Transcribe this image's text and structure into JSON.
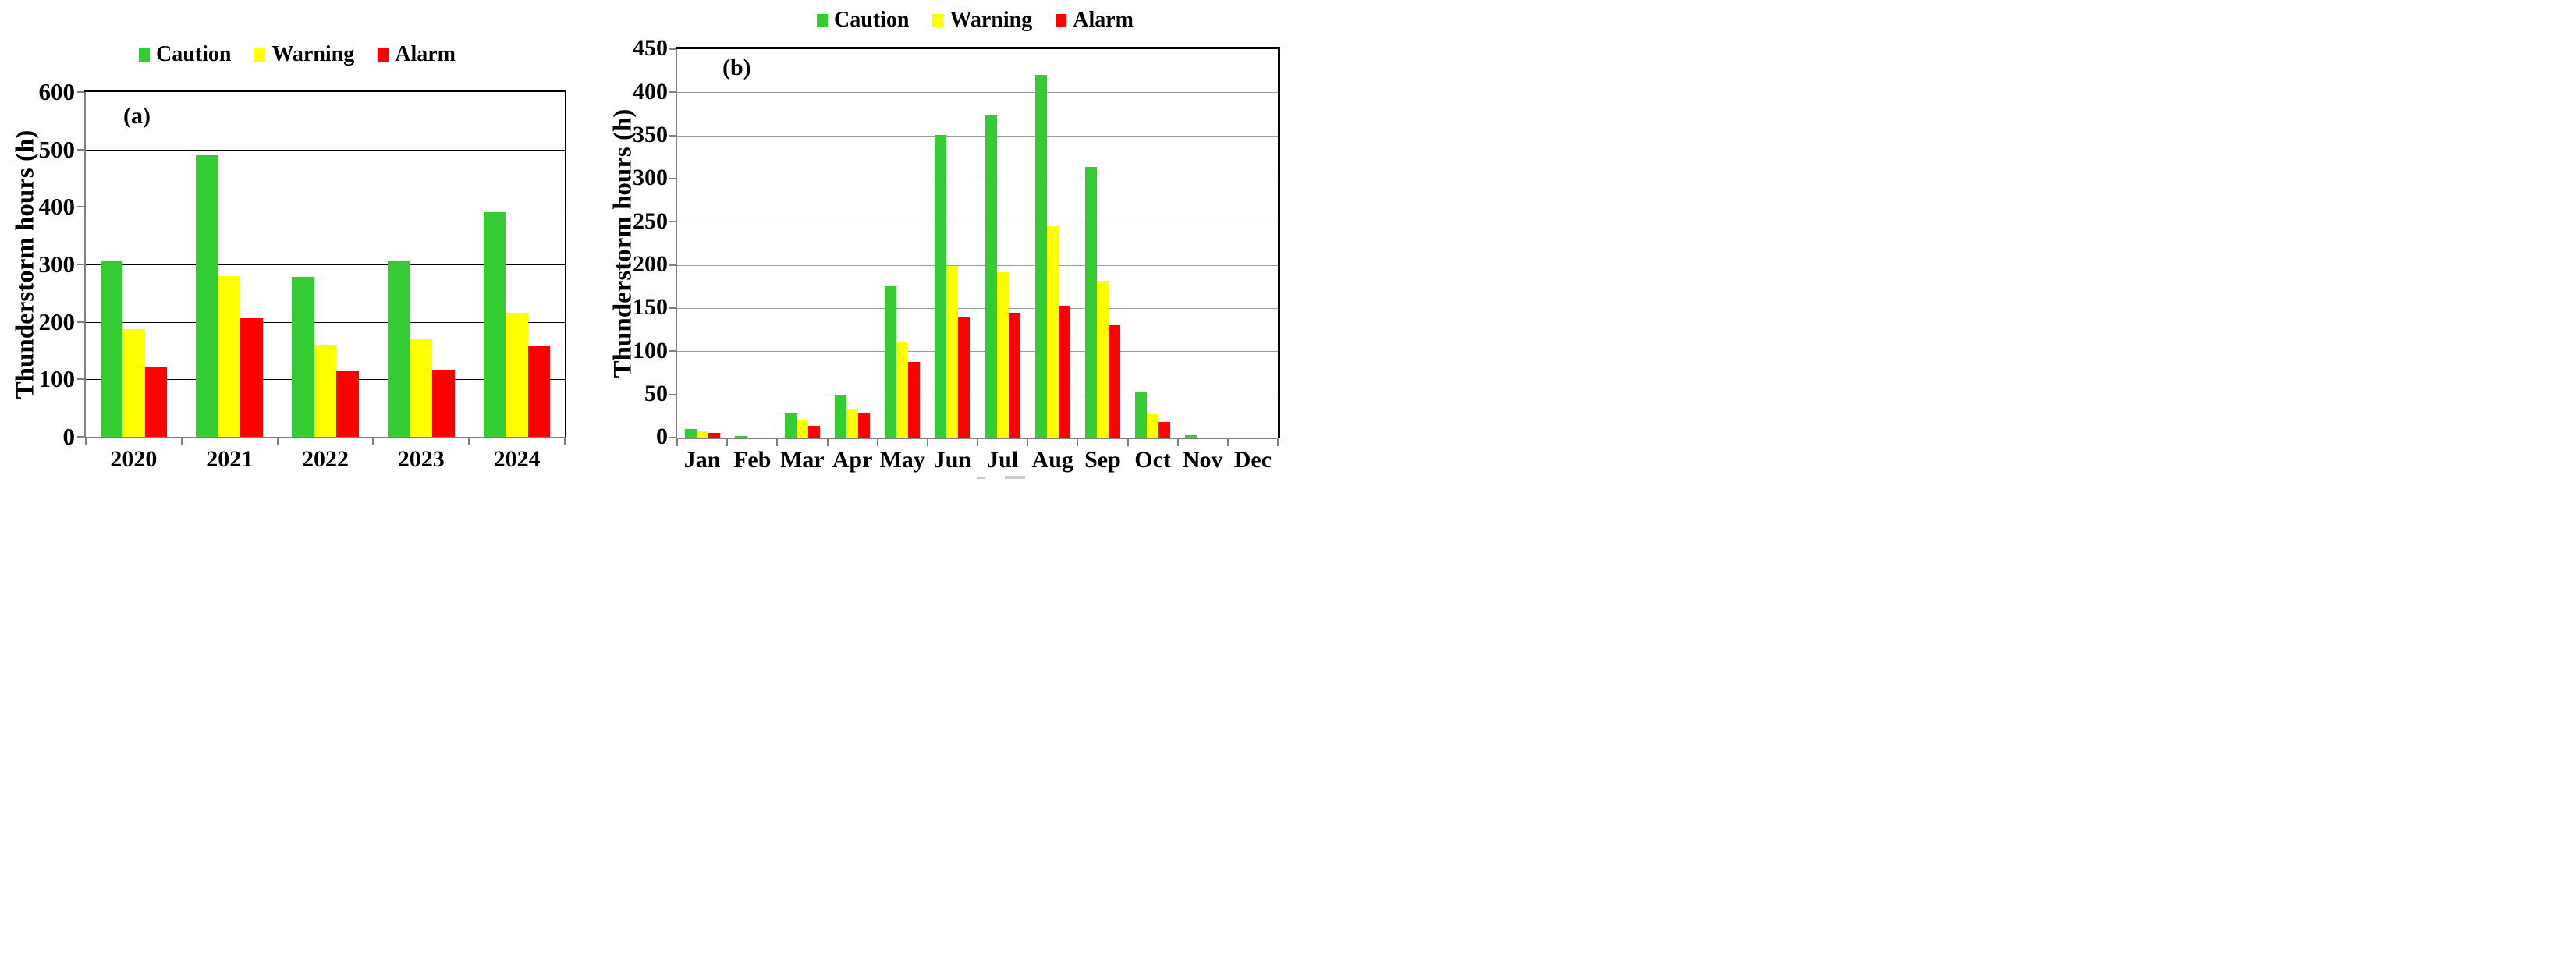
{
  "figure": {
    "background": "#ffffff",
    "legend_labels": [
      "Caution",
      "Warning",
      "Alarm"
    ],
    "series_colors": {
      "caution": "#33cc33",
      "warning": "#ffff00",
      "alarm": "#ff0000"
    }
  },
  "chart_data": [
    {
      "id": "panel-a",
      "type": "bar",
      "panel_label": "(a)",
      "title": "",
      "xlabel": "",
      "ylabel": "Thunderstorm hours (h)",
      "categories": [
        "2020",
        "2021",
        "2022",
        "2023",
        "2024"
      ],
      "series": [
        {
          "name": "Caution",
          "color": "#33cc33",
          "values": [
            307,
            490,
            278,
            306,
            391
          ]
        },
        {
          "name": "Warning",
          "color": "#ffff00",
          "values": [
            188,
            280,
            160,
            170,
            216
          ]
        },
        {
          "name": "Alarm",
          "color": "#ff0000",
          "values": [
            121,
            206,
            114,
            117,
            158
          ]
        }
      ],
      "ylim": [
        0,
        600
      ],
      "ystep": 100,
      "yticks": [
        0,
        100,
        200,
        300,
        400,
        500,
        600
      ],
      "grid": true,
      "legend_position": "top-center"
    },
    {
      "id": "panel-b",
      "type": "bar",
      "panel_label": "(b)",
      "title": "",
      "xlabel": "",
      "ylabel": "Thunderstorm hours (h)",
      "categories": [
        "Jan",
        "Feb",
        "Mar",
        "Apr",
        "May",
        "Jun",
        "Jul",
        "Aug",
        "Sep",
        "Oct",
        "Nov",
        "Dec"
      ],
      "series": [
        {
          "name": "Caution",
          "color": "#33cc33",
          "values": [
            10,
            2,
            28,
            50,
            175,
            351,
            374,
            420,
            314,
            53,
            3,
            0
          ]
        },
        {
          "name": "Warning",
          "color": "#ffff00",
          "values": [
            7,
            0,
            20,
            33,
            110,
            199,
            192,
            245,
            182,
            27,
            0,
            0
          ]
        },
        {
          "name": "Alarm",
          "color": "#ff0000",
          "values": [
            5,
            0,
            14,
            28,
            88,
            140,
            145,
            153,
            130,
            18,
            0,
            0
          ]
        }
      ],
      "ylim": [
        0,
        450
      ],
      "ystep": 50,
      "yticks": [
        0,
        50,
        100,
        150,
        200,
        250,
        300,
        350,
        400,
        450
      ],
      "grid": true,
      "legend_position": "top-center"
    }
  ]
}
